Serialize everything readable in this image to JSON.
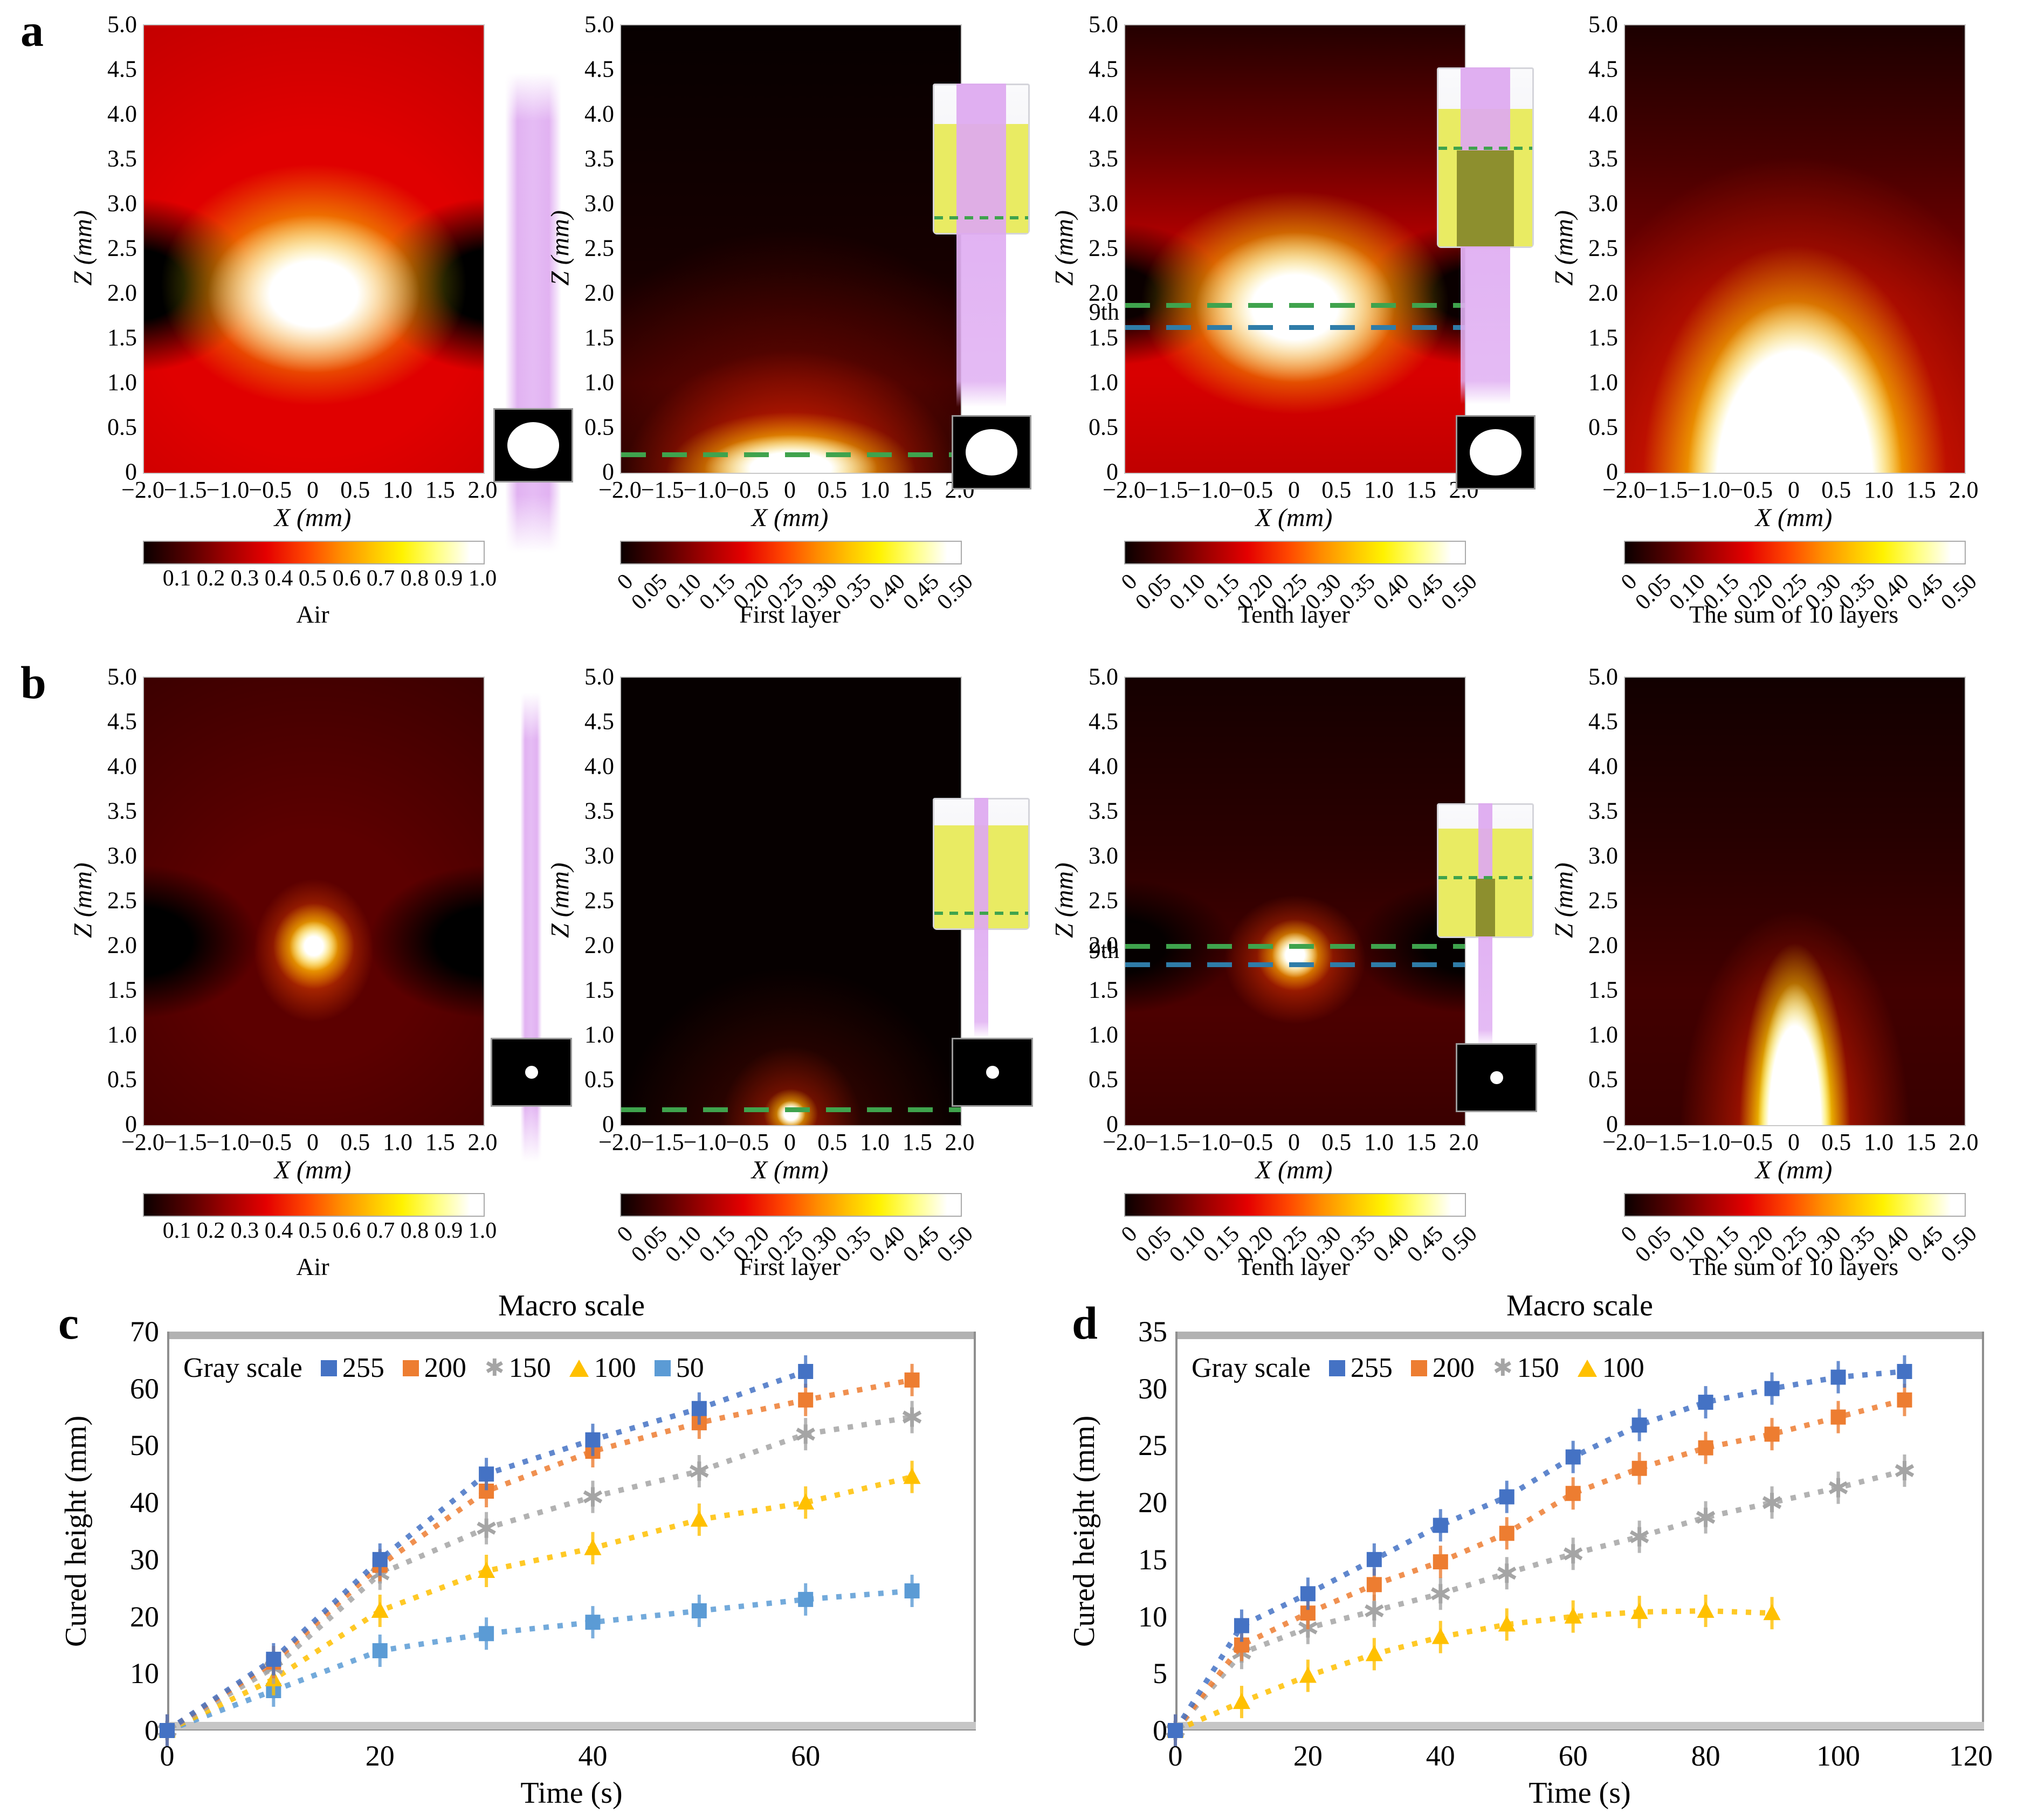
{
  "figure": {
    "panel_labels": {
      "a": "a",
      "b": "b",
      "c": "c",
      "d": "d"
    },
    "heatmap_axes": {
      "ylabel": "Z (mm)",
      "xlabel": "X (mm)",
      "yticks": [
        "5.0",
        "4.5",
        "4.0",
        "3.5",
        "3.0",
        "2.5",
        "2.0",
        "1.5",
        "1.0",
        "0.5",
        "0"
      ],
      "xticks": [
        "−2.0",
        "−1.5",
        "−1.0",
        "−0.5",
        "0",
        "0.5",
        "1.0",
        "1.5",
        "2.0"
      ]
    },
    "colorbar_air_ticks": [
      "0.1",
      "0.2",
      "0.3",
      "0.4",
      "0.5",
      "0.6",
      "0.7",
      "0.8",
      "0.9",
      "1.0"
    ],
    "colorbar_layer_ticks": [
      "0",
      "0.05",
      "0.10",
      "0.15",
      "0.20",
      "0.25",
      "0.30",
      "0.35",
      "0.40",
      "0.45",
      "0.50"
    ],
    "captions": {
      "a1": "Air",
      "a2": "First layer",
      "a3": "Tenth layer",
      "a4": "The sum of 10 layers",
      "b1": "Air",
      "b2": "First layer",
      "b3": "Tenth layer",
      "b4": "The sum of 10 layers"
    },
    "ninth_label": "9th"
  },
  "chart_data": [
    {
      "type": "heatmap",
      "panel": "a",
      "caption": "Air",
      "xlabel": "X (mm)",
      "ylabel": "Z (mm)",
      "xlim": [
        -2.0,
        2.0
      ],
      "ylim": [
        0.0,
        5.0
      ],
      "colorbar": {
        "min": 0.0,
        "max": 1.0,
        "ticks": [
          0.1,
          0.2,
          0.3,
          0.4,
          0.5,
          0.6,
          0.7,
          0.8,
          0.9,
          1.0
        ]
      },
      "pattern": "wide beam in air; white-hot focal ellipse centered at x=0, z≈2.0 mm; dark lobes left and right of focus; red background"
    },
    {
      "type": "heatmap",
      "panel": "a",
      "caption": "First layer",
      "xlabel": "X (mm)",
      "ylabel": "Z (mm)",
      "xlim": [
        -2.0,
        2.0
      ],
      "ylim": [
        0.0,
        5.0
      ],
      "colorbar": {
        "min": 0.0,
        "max": 0.5,
        "ticks": [
          0,
          0.05,
          0.1,
          0.15,
          0.2,
          0.25,
          0.3,
          0.35,
          0.4,
          0.45,
          0.5
        ]
      },
      "annotations": [
        {
          "type": "dashed-line",
          "color": "green",
          "z": 0.2
        }
      ],
      "pattern": "dark field with bright cured dome at bottom center under green dashed layer line at z≈0.2 mm"
    },
    {
      "type": "heatmap",
      "panel": "a",
      "caption": "Tenth layer",
      "xlabel": "X (mm)",
      "ylabel": "Z (mm)",
      "xlim": [
        -2.0,
        2.0
      ],
      "ylim": [
        0.0,
        5.0
      ],
      "colorbar": {
        "min": 0.0,
        "max": 0.5,
        "ticks": [
          0,
          0.05,
          0.1,
          0.15,
          0.2,
          0.25,
          0.3,
          0.35,
          0.4,
          0.45,
          0.5
        ]
      },
      "annotations": [
        {
          "type": "dashed-line",
          "color": "green",
          "z": 1.85
        },
        {
          "type": "dashed-line",
          "color": "blue",
          "z": 1.63
        },
        {
          "type": "text",
          "label": "9th"
        }
      ],
      "pattern": "bright wide ellipse centered near z≈1.8 mm between green and blue dashed layer lines; red below, dark above"
    },
    {
      "type": "heatmap",
      "panel": "a",
      "caption": "The sum of 10 layers",
      "xlabel": "X (mm)",
      "ylabel": "Z (mm)",
      "xlim": [
        -2.0,
        2.0
      ],
      "ylim": [
        0.0,
        5.0
      ],
      "colorbar": {
        "min": 0.0,
        "max": 0.5,
        "ticks": [
          0,
          0.05,
          0.1,
          0.15,
          0.2,
          0.25,
          0.3,
          0.35,
          0.4,
          0.45,
          0.5
        ]
      },
      "pattern": "white cured dome about 2 mm wide rising from bottom to z≈2.3 mm, yellow rim, red halo"
    },
    {
      "type": "heatmap",
      "panel": "b",
      "caption": "Air",
      "xlabel": "X (mm)",
      "ylabel": "Z (mm)",
      "xlim": [
        -2.0,
        2.0
      ],
      "ylim": [
        0.0,
        5.0
      ],
      "colorbar": {
        "min": 0.0,
        "max": 1.0,
        "ticks": [
          0.1,
          0.2,
          0.3,
          0.4,
          0.5,
          0.6,
          0.7,
          0.8,
          0.9,
          1.0
        ]
      },
      "pattern": "narrow beam in air; small white focal spot at x=0, z≈2.0 mm; dark hourglass wings; dark red background"
    },
    {
      "type": "heatmap",
      "panel": "b",
      "caption": "First layer",
      "xlabel": "X (mm)",
      "ylabel": "Z (mm)",
      "xlim": [
        -2.0,
        2.0
      ],
      "ylim": [
        0.0,
        5.0
      ],
      "colorbar": {
        "min": 0.0,
        "max": 0.5,
        "ticks": [
          0,
          0.05,
          0.1,
          0.15,
          0.2,
          0.25,
          0.3,
          0.35,
          0.4,
          0.45,
          0.5
        ]
      },
      "annotations": [
        {
          "type": "dashed-line",
          "color": "green",
          "z": 0.17
        }
      ],
      "pattern": "nearly black field; tiny bright spot at bottom center on green dashed layer line at z≈0.17 mm; faint red cone above"
    },
    {
      "type": "heatmap",
      "panel": "b",
      "caption": "Tenth layer",
      "xlabel": "X (mm)",
      "ylabel": "Z (mm)",
      "xlim": [
        -2.0,
        2.0
      ],
      "ylim": [
        0.0,
        5.0
      ],
      "colorbar": {
        "min": 0.0,
        "max": 0.5,
        "ticks": [
          0,
          0.05,
          0.1,
          0.15,
          0.2,
          0.25,
          0.3,
          0.35,
          0.4,
          0.45,
          0.5
        ]
      },
      "annotations": [
        {
          "type": "dashed-line",
          "color": "green",
          "z": 2.0
        },
        {
          "type": "dashed-line",
          "color": "blue",
          "z": 1.8
        },
        {
          "type": "text",
          "label": "9th"
        }
      ],
      "pattern": "small bright spot at x=0 between green (z≈2.0) and blue (z≈1.8) dashed lines; dark wings left and right"
    },
    {
      "type": "heatmap",
      "panel": "b",
      "caption": "The sum of 10 layers",
      "xlabel": "X (mm)",
      "ylabel": "Z (mm)",
      "xlim": [
        -2.0,
        2.0
      ],
      "ylim": [
        0.0,
        5.0
      ],
      "colorbar": {
        "min": 0.0,
        "max": 0.5,
        "ticks": [
          0,
          0.05,
          0.1,
          0.15,
          0.2,
          0.25,
          0.3,
          0.35,
          0.4,
          0.45,
          0.5
        ]
      },
      "pattern": "narrow white cured column about 1 mm wide from bottom up to z≈2.0 mm with yellow rim and red glow"
    },
    {
      "type": "scatter",
      "panel": "c",
      "title": "Macro scale",
      "xlabel": "Time (s)",
      "ylabel": "Cured height (mm)",
      "xlim": [
        0,
        76
      ],
      "ylim": [
        0,
        70
      ],
      "xticks": [
        0,
        20,
        40,
        60
      ],
      "yticks": [
        0,
        10,
        20,
        30,
        40,
        50,
        60,
        70
      ],
      "legend_title": "Gray scale",
      "legend_position": "top-left inside",
      "series": [
        {
          "name": "255",
          "color": "#4472c4",
          "marker": "square",
          "points": [
            [
              0,
              0
            ],
            [
              10,
              12.5
            ],
            [
              20,
              30
            ],
            [
              30,
              45
            ],
            [
              40,
              51
            ],
            [
              50,
              56.5
            ],
            [
              60,
              63
            ]
          ]
        },
        {
          "name": "200",
          "color": "#ed7d31",
          "marker": "square",
          "points": [
            [
              0,
              0
            ],
            [
              10,
              12
            ],
            [
              20,
              29
            ],
            [
              30,
              42
            ],
            [
              40,
              49
            ],
            [
              50,
              54
            ],
            [
              60,
              58
            ],
            [
              70,
              61.5
            ]
          ]
        },
        {
          "name": "150",
          "color": "#a5a5a5",
          "marker": "asterisk",
          "points": [
            [
              0,
              0
            ],
            [
              10,
              11
            ],
            [
              20,
              27.5
            ],
            [
              30,
              35.5
            ],
            [
              40,
              41
            ],
            [
              50,
              45.5
            ],
            [
              60,
              52
            ],
            [
              70,
              55
            ]
          ]
        },
        {
          "name": "100",
          "color": "#ffc000",
          "marker": "triangle",
          "points": [
            [
              0,
              0
            ],
            [
              10,
              9
            ],
            [
              20,
              21
            ],
            [
              30,
              28
            ],
            [
              40,
              32
            ],
            [
              50,
              37
            ],
            [
              60,
              40
            ],
            [
              70,
              44.5
            ]
          ]
        },
        {
          "name": "50",
          "color": "#5b9bd5",
          "marker": "square",
          "points": [
            [
              0,
              0
            ],
            [
              10,
              7
            ],
            [
              20,
              14
            ],
            [
              30,
              17
            ],
            [
              40,
              19
            ],
            [
              50,
              21
            ],
            [
              60,
              23
            ],
            [
              70,
              24.5
            ]
          ]
        }
      ]
    },
    {
      "type": "scatter",
      "panel": "d",
      "title": "Macro scale",
      "xlabel": "Time (s)",
      "ylabel": "Cured height (mm)",
      "xlim": [
        0,
        122
      ],
      "ylim": [
        0,
        35
      ],
      "xticks": [
        0,
        20,
        40,
        60,
        80,
        100,
        120
      ],
      "yticks": [
        0,
        5,
        10,
        15,
        20,
        25,
        30,
        35
      ],
      "legend_title": "Gray scale",
      "legend_position": "top-left inside",
      "series": [
        {
          "name": "255",
          "color": "#4472c4",
          "marker": "square",
          "points": [
            [
              0,
              0
            ],
            [
              10,
              9.2
            ],
            [
              20,
              12
            ],
            [
              30,
              15
            ],
            [
              40,
              18
            ],
            [
              50,
              20.5
            ],
            [
              60,
              24
            ],
            [
              70,
              26.8
            ],
            [
              80,
              28.8
            ],
            [
              90,
              30
            ],
            [
              100,
              31
            ],
            [
              110,
              31.5
            ]
          ]
        },
        {
          "name": "200",
          "color": "#ed7d31",
          "marker": "square",
          "points": [
            [
              0,
              0
            ],
            [
              10,
              7.5
            ],
            [
              20,
              10.3
            ],
            [
              30,
              12.8
            ],
            [
              40,
              14.8
            ],
            [
              50,
              17.3
            ],
            [
              60,
              20.8
            ],
            [
              70,
              23
            ],
            [
              80,
              24.8
            ],
            [
              90,
              26
            ],
            [
              100,
              27.5
            ],
            [
              110,
              29
            ]
          ]
        },
        {
          "name": "150",
          "color": "#a5a5a5",
          "marker": "asterisk",
          "points": [
            [
              0,
              0
            ],
            [
              10,
              6.8
            ],
            [
              20,
              9
            ],
            [
              30,
              10.5
            ],
            [
              40,
              12
            ],
            [
              50,
              13.8
            ],
            [
              60,
              15.5
            ],
            [
              70,
              17
            ],
            [
              80,
              18.7
            ],
            [
              90,
              20
            ],
            [
              100,
              21.3
            ],
            [
              110,
              22.8
            ]
          ]
        },
        {
          "name": "100",
          "color": "#ffc000",
          "marker": "triangle",
          "points": [
            [
              0,
              0
            ],
            [
              10,
              2.5
            ],
            [
              20,
              4.8
            ],
            [
              30,
              6.7
            ],
            [
              40,
              8.2
            ],
            [
              50,
              9.3
            ],
            [
              60,
              10
            ],
            [
              70,
              10.4
            ],
            [
              80,
              10.5
            ],
            [
              90,
              10.3
            ]
          ]
        }
      ]
    }
  ]
}
